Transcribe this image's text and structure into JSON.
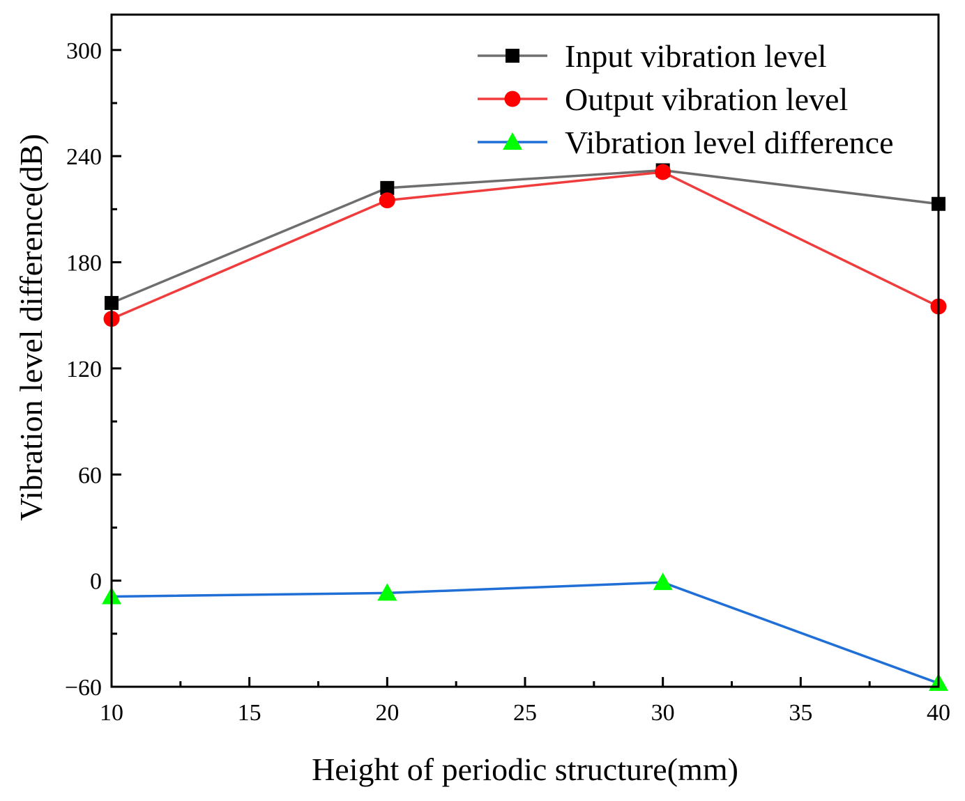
{
  "chart_data": {
    "type": "line",
    "xlabel": "Height of periodic structure(mm)",
    "ylabel": "Vibration level difference(dB)",
    "xlim": [
      10,
      40
    ],
    "ylim": [
      -60,
      320
    ],
    "x_ticks": [
      10,
      15,
      20,
      25,
      30,
      35,
      40
    ],
    "y_ticks": [
      -60,
      0,
      60,
      120,
      180,
      240,
      300
    ],
    "y_tick_labels": [
      "−60",
      "0",
      "60",
      "120",
      "180",
      "240",
      "300"
    ],
    "x": [
      10,
      20,
      30,
      40
    ],
    "legend_position": "top-right",
    "series": [
      {
        "name": "Input vibration level",
        "color": "#6e6e6e",
        "marker": "square",
        "marker_color": "#000000",
        "values": [
          157,
          222,
          232,
          213
        ]
      },
      {
        "name": "Output vibration level",
        "color": "#f03c3c",
        "marker": "circle",
        "marker_color": "#ff0000",
        "values": [
          148,
          215,
          231,
          155
        ]
      },
      {
        "name": "Vibration level difference",
        "color": "#1f6fd6",
        "marker": "triangle",
        "marker_color": "#00ff00",
        "values": [
          -9,
          -7,
          -1,
          -58
        ]
      }
    ]
  }
}
